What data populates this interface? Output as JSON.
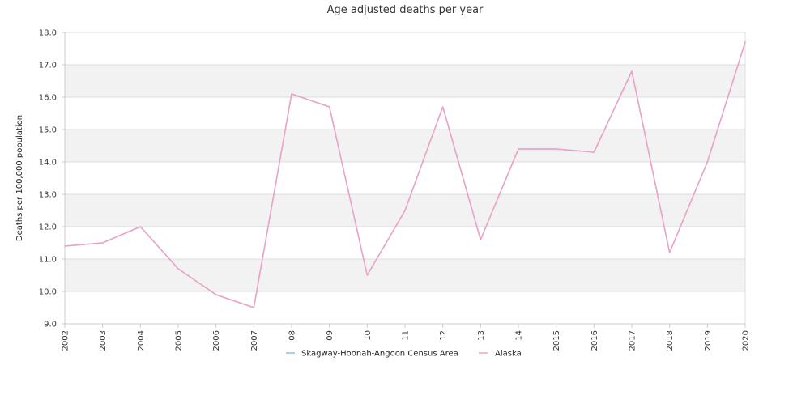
{
  "chart_data": {
    "type": "line",
    "title": "Age adjusted deaths per year",
    "ylabel": "Deaths per 100,000 population",
    "xlabel": "",
    "ylim": [
      9.0,
      18.0
    ],
    "yticks": [
      "9.0",
      "10.0",
      "11.0",
      "12.0",
      "13.0",
      "14.0",
      "15.0",
      "16.0",
      "17.0",
      "18.0"
    ],
    "categories": [
      "2002",
      "2003",
      "2004",
      "2005",
      "2006",
      "2007",
      "08",
      "09",
      "10",
      "11",
      "12",
      "13",
      "14",
      "2015",
      "2016",
      "2017",
      "2018",
      "2019",
      "2020"
    ],
    "grid": "horizontal bands",
    "legend_position": "bottom",
    "series": [
      {
        "name": "Skagway-Hoonah-Angoon Census Area",
        "color": "#7ecbd6",
        "values": [
          11.4,
          11.5,
          12.0,
          10.7,
          9.9,
          9.5,
          16.1,
          15.7,
          10.5,
          12.5,
          15.7,
          11.6,
          14.4,
          14.4,
          14.3,
          16.8,
          11.2,
          14.0,
          17.7
        ]
      },
      {
        "name": "Alaska",
        "color": "#f2a0c6",
        "values": [
          11.4,
          11.5,
          12.0,
          10.7,
          9.9,
          9.5,
          16.1,
          15.7,
          10.5,
          12.5,
          15.7,
          11.6,
          14.4,
          14.4,
          14.3,
          16.8,
          11.2,
          14.0,
          17.7
        ]
      }
    ],
    "colors": {
      "band": "#f3f2f2",
      "gridline": "#dcdcdc",
      "axis": "#cccccc"
    }
  }
}
